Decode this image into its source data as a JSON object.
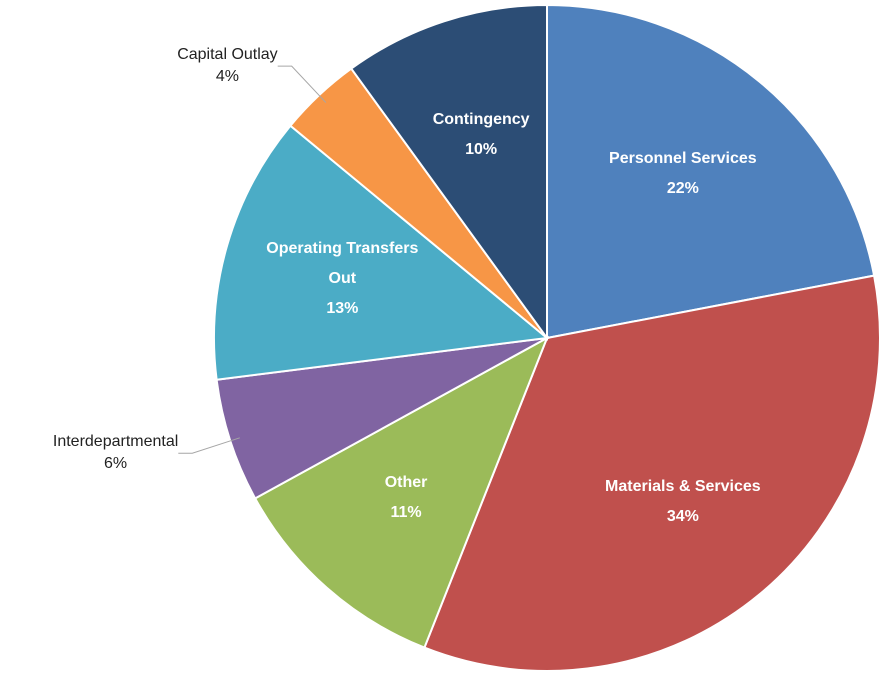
{
  "chart_data": {
    "type": "pie",
    "categories": [
      "Personnel Services",
      "Materials & Services",
      "Other",
      "Interdepartmental",
      "Operating Transfers Out",
      "Capital Outlay",
      "Contingency"
    ],
    "values": [
      22,
      34,
      11,
      6,
      13,
      4,
      10
    ],
    "value_labels": [
      "22%",
      "34%",
      "11%",
      "6%",
      "13%",
      "4%",
      "10%"
    ],
    "colors": [
      "#4f81bd",
      "#c0504d",
      "#9bbb59",
      "#8064a2",
      "#4bacc6",
      "#f79646",
      "#2c4d75"
    ]
  }
}
